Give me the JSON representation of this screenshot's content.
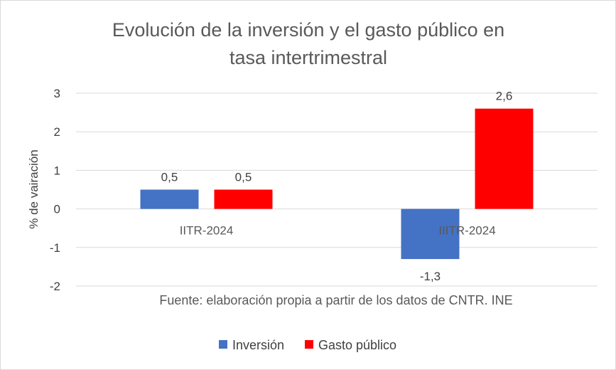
{
  "chart_data": {
    "type": "bar",
    "title_lines": [
      "Evolución de la inversión y el gasto público en",
      "tasa intertrimestral"
    ],
    "ylabel": "% de vairación",
    "xlabel": "",
    "categories": [
      "IITR-2024",
      "IIITR-2024"
    ],
    "series": [
      {
        "name": "Inversión",
        "color": "#4472c4",
        "values": [
          0.5,
          -1.3
        ],
        "labels": [
          "0,5",
          "-1,3"
        ]
      },
      {
        "name": "Gasto público",
        "color": "#ff0000",
        "values": [
          0.5,
          2.6
        ],
        "labels": [
          "0,5",
          "2,6"
        ]
      }
    ],
    "ylim": [
      -2,
      3
    ],
    "yticks": [
      3,
      2,
      1,
      0,
      -1,
      -2
    ],
    "grid": true,
    "legend": "bottom",
    "annotation": "Fuente: elaboración propia a partir de los datos de CNTR. INE"
  }
}
